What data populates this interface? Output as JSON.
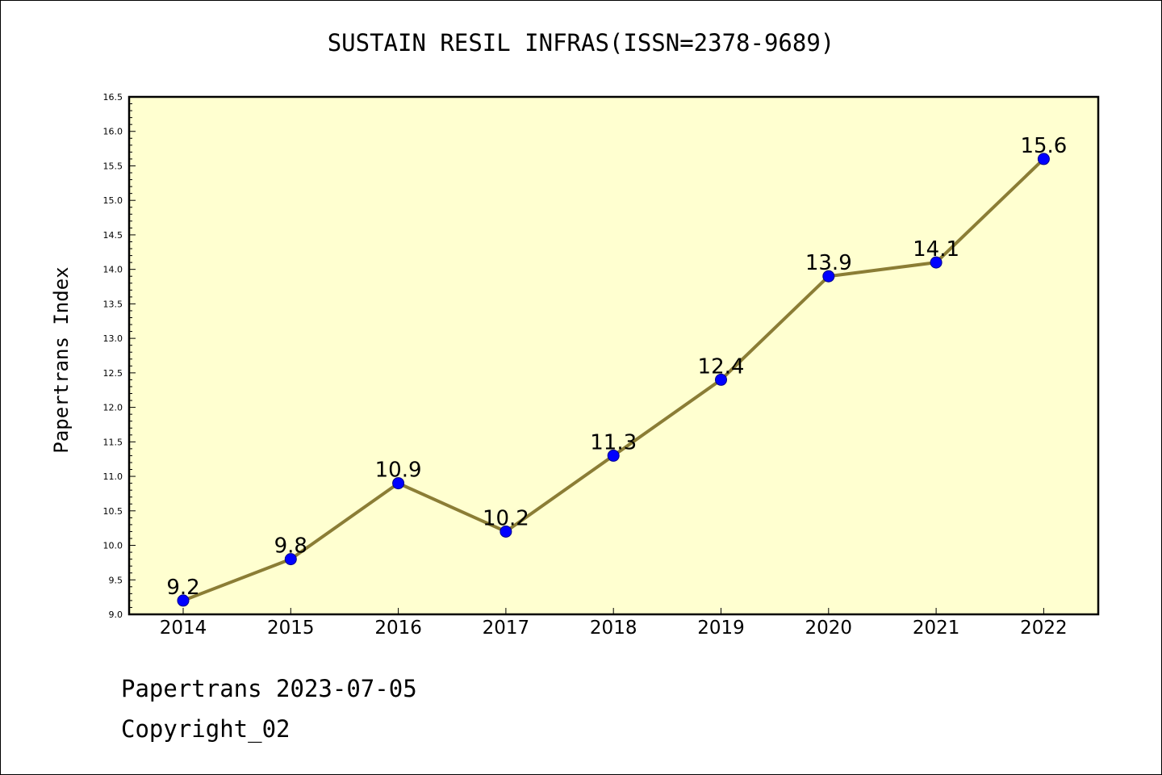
{
  "chart_data": {
    "type": "line",
    "title": "SUSTAIN RESIL INFRAS(ISSN=2378-9689)",
    "xlabel": "",
    "ylabel": "Papertrans Index",
    "categories": [
      "2014",
      "2015",
      "2016",
      "2017",
      "2018",
      "2019",
      "2020",
      "2021",
      "2022"
    ],
    "series": [
      {
        "values": [
          9.2,
          9.8,
          10.9,
          10.2,
          11.3,
          12.4,
          13.9,
          14.1,
          15.6
        ],
        "data_labels": [
          "9.2",
          "9.8",
          "10.9",
          "10.2",
          "11.3",
          "12.4",
          "13.9",
          "14.1",
          "15.6"
        ]
      }
    ],
    "ylim": [
      9.0,
      16.5
    ],
    "yticks": [
      "9.0",
      "9.5",
      "10.0",
      "10.5",
      "11.0",
      "11.5",
      "12.0",
      "12.5",
      "13.0",
      "13.5",
      "14.0",
      "14.5",
      "15.0",
      "15.5",
      "16.0",
      "16.5"
    ],
    "grid": false,
    "colors": {
      "plot_background": "#ffffd0",
      "line": "#8b7d35",
      "marker_fill": "#0000ff",
      "marker_edge": "#00008b"
    }
  },
  "footer": {
    "line1": "Papertrans 2023-07-05",
    "line2": "Copyright_02"
  }
}
